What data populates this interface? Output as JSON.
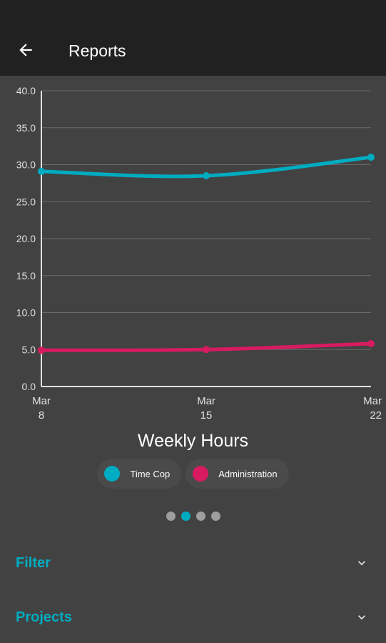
{
  "appbar": {
    "title": "Reports",
    "back_icon": "arrow-left-icon"
  },
  "colors": {
    "appbar_bg": "#212121",
    "page_bg": "#424242",
    "accent": "#00acc1",
    "time_cop": "#00acc1",
    "administration": "#d81b60"
  },
  "chart_data": {
    "type": "line",
    "title": "Weekly Hours",
    "categories": [
      "Mar 8",
      "Mar 15",
      "Mar 22"
    ],
    "x_ticks": [
      {
        "line1": "Mar",
        "line2": "8"
      },
      {
        "line1": "Mar",
        "line2": "15"
      },
      {
        "line1": "Mar",
        "line2": "22"
      }
    ],
    "y_ticks": [
      "0.0",
      "5.0",
      "10.0",
      "15.0",
      "20.0",
      "25.0",
      "30.0",
      "35.0",
      "40.0"
    ],
    "ylim": [
      0,
      40
    ],
    "grid": true,
    "legend_position": "bottom",
    "series": [
      {
        "name": "Time Cop",
        "color": "#00acc1",
        "values": [
          29.1,
          28.5,
          31.0
        ]
      },
      {
        "name": "Administration",
        "color": "#d81b60",
        "values": [
          4.9,
          5.0,
          5.8
        ]
      }
    ]
  },
  "pager": {
    "count": 4,
    "active_index": 1
  },
  "sections": [
    {
      "label": "Filter",
      "icon": "chevron-down-icon"
    },
    {
      "label": "Projects",
      "icon": "chevron-down-icon"
    }
  ]
}
